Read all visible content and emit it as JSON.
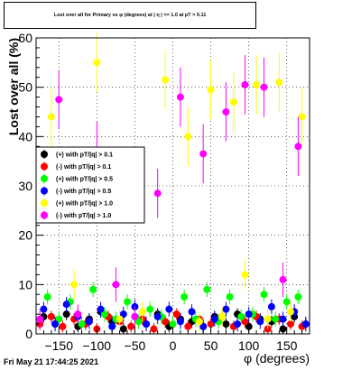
{
  "header": {
    "title": "Lost over all for Primary vs φ (degrees) at | η | <= 1.0 at pT > 0.11"
  },
  "footer": {
    "timestamp": "Fri May 21 17:44:25 2021"
  },
  "chart_data": {
    "type": "scatter",
    "title": "Lost over all for Primary vs φ (degrees) at | η | <= 1.0 at pT > 0.11",
    "xlabel": "φ (degrees)",
    "ylabel": "Lost over all (%)",
    "xlim": [
      -180,
      180
    ],
    "ylim": [
      0,
      60
    ],
    "xticks": [
      -150,
      -100,
      -50,
      0,
      50,
      100,
      150
    ],
    "yticks": [
      0,
      10,
      20,
      30,
      40,
      50,
      60
    ],
    "grid": true,
    "legend_position": "left",
    "series": [
      {
        "name": "(+) with pT/|q| > 0.1",
        "color": "#000000",
        "x": [
          -170,
          -155,
          -140,
          -125,
          -110,
          -95,
          -80,
          -65,
          -50,
          -35,
          -20,
          -5,
          10,
          25,
          40,
          55,
          70,
          85,
          100,
          115,
          130,
          145,
          160,
          175
        ],
        "y": [
          3.5,
          2.0,
          4.0,
          1.5,
          3.0,
          4.5,
          2.5,
          1.0,
          3.5,
          2.0,
          4.0,
          1.5,
          3.0,
          2.5,
          1.5,
          3.5,
          2.0,
          4.0,
          1.5,
          3.0,
          2.5,
          1.0,
          3.5,
          2.0
        ],
        "err": [
          1.2,
          1.2,
          1.2,
          1.2,
          1.2,
          1.2,
          1.2,
          1.2,
          1.2,
          1.2,
          1.2,
          1.2,
          1.2,
          1.2,
          1.2,
          1.2,
          1.2,
          1.2,
          1.2,
          1.2,
          1.2,
          1.2,
          1.2,
          1.2
        ]
      },
      {
        "name": "(-) with pT/|q| > 0.1",
        "color": "#ff0000",
        "x": [
          -175,
          -160,
          -145,
          -130,
          -115,
          -100,
          -85,
          -70,
          -55,
          -40,
          -25,
          -10,
          5,
          20,
          35,
          50,
          65,
          80,
          95,
          110,
          125,
          140,
          155,
          170
        ],
        "y": [
          2.0,
          3.5,
          1.5,
          3.0,
          2.0,
          1.0,
          3.5,
          2.5,
          1.5,
          3.0,
          1.0,
          2.5,
          4.0,
          1.5,
          3.0,
          2.0,
          3.5,
          1.5,
          2.5,
          3.5,
          1.0,
          3.0,
          2.0,
          1.5
        ],
        "err": [
          1.2,
          1.2,
          1.2,
          1.2,
          1.2,
          1.2,
          1.2,
          1.2,
          1.2,
          1.2,
          1.2,
          1.2,
          1.2,
          1.2,
          1.2,
          1.2,
          1.2,
          1.2,
          1.2,
          1.2,
          1.2,
          1.2,
          1.2,
          1.2
        ]
      },
      {
        "name": "(+) with pT/|q| > 0.5",
        "color": "#00ff00",
        "x": [
          -165,
          -150,
          -135,
          -120,
          -105,
          -90,
          -75,
          -60,
          -45,
          -30,
          -15,
          0,
          15,
          30,
          45,
          60,
          75,
          90,
          105,
          120,
          135,
          150,
          165
        ],
        "y": [
          7.5,
          3.0,
          6.5,
          2.0,
          9.0,
          4.0,
          3.0,
          6.5,
          2.5,
          5.0,
          3.5,
          2.0,
          7.5,
          3.0,
          9.0,
          2.5,
          7.5,
          3.5,
          4.0,
          8.0,
          3.0,
          6.5,
          7.5
        ],
        "err": [
          1.5,
          1.5,
          1.5,
          1.5,
          1.5,
          1.5,
          1.5,
          1.5,
          1.5,
          1.5,
          1.5,
          1.5,
          1.5,
          1.5,
          1.5,
          1.5,
          1.5,
          1.5,
          1.5,
          1.5,
          1.5,
          1.5,
          1.5
        ]
      },
      {
        "name": "(-) with pT/|q| > 0.5",
        "color": "#0000ff",
        "x": [
          -170,
          -155,
          -140,
          -125,
          -110,
          -95,
          -80,
          -65,
          -50,
          -35,
          -20,
          -5,
          10,
          25,
          40,
          55,
          70,
          85,
          100,
          115,
          130,
          145,
          160,
          175
        ],
        "y": [
          5.0,
          2.0,
          6.0,
          3.5,
          2.5,
          5.0,
          1.5,
          4.0,
          5.5,
          2.0,
          3.5,
          5.0,
          2.5,
          4.5,
          1.5,
          3.0,
          5.0,
          2.0,
          4.0,
          2.5,
          5.5,
          3.0,
          4.5,
          2.0
        ],
        "err": [
          1.5,
          1.5,
          1.5,
          1.5,
          1.5,
          1.5,
          1.5,
          1.5,
          1.5,
          1.5,
          1.5,
          1.5,
          1.5,
          1.5,
          1.5,
          1.5,
          1.5,
          1.5,
          1.5,
          1.5,
          1.5,
          1.5,
          1.5,
          1.5
        ]
      },
      {
        "name": "(+) with pT/|q| > 1.0",
        "color": "#ffff00",
        "x": [
          -160,
          -130,
          -100,
          -70,
          -40,
          -10,
          20,
          35,
          50,
          65,
          80,
          95,
          110,
          125,
          140,
          155,
          170
        ],
        "y": [
          44.0,
          10.0,
          55.0,
          3.0,
          4.5,
          51.5,
          40.0,
          2.5,
          49.5,
          3.5,
          47.0,
          12.0,
          50.5,
          3.0,
          51.0,
          4.5,
          44.0
        ],
        "err": [
          6.0,
          3.0,
          6.0,
          2.0,
          2.0,
          6.0,
          6.0,
          2.0,
          6.0,
          2.0,
          6.0,
          3.0,
          6.0,
          2.0,
          6.0,
          2.0,
          6.0
        ]
      },
      {
        "name": "(-) with pT/|q| > 1.0",
        "color": "#ff00ff",
        "x": [
          -175,
          -150,
          -125,
          -100,
          -75,
          -50,
          -20,
          10,
          40,
          70,
          95,
          120,
          145,
          165
        ],
        "y": [
          3.0,
          47.5,
          4.0,
          37.0,
          10.0,
          3.5,
          28.5,
          48.0,
          36.5,
          45.0,
          50.5,
          50.0,
          11.0,
          38.0
        ],
        "err": [
          2.0,
          6.0,
          2.0,
          6.0,
          3.5,
          2.0,
          5.0,
          6.0,
          6.0,
          6.0,
          6.0,
          6.0,
          3.5,
          6.0
        ]
      }
    ]
  }
}
